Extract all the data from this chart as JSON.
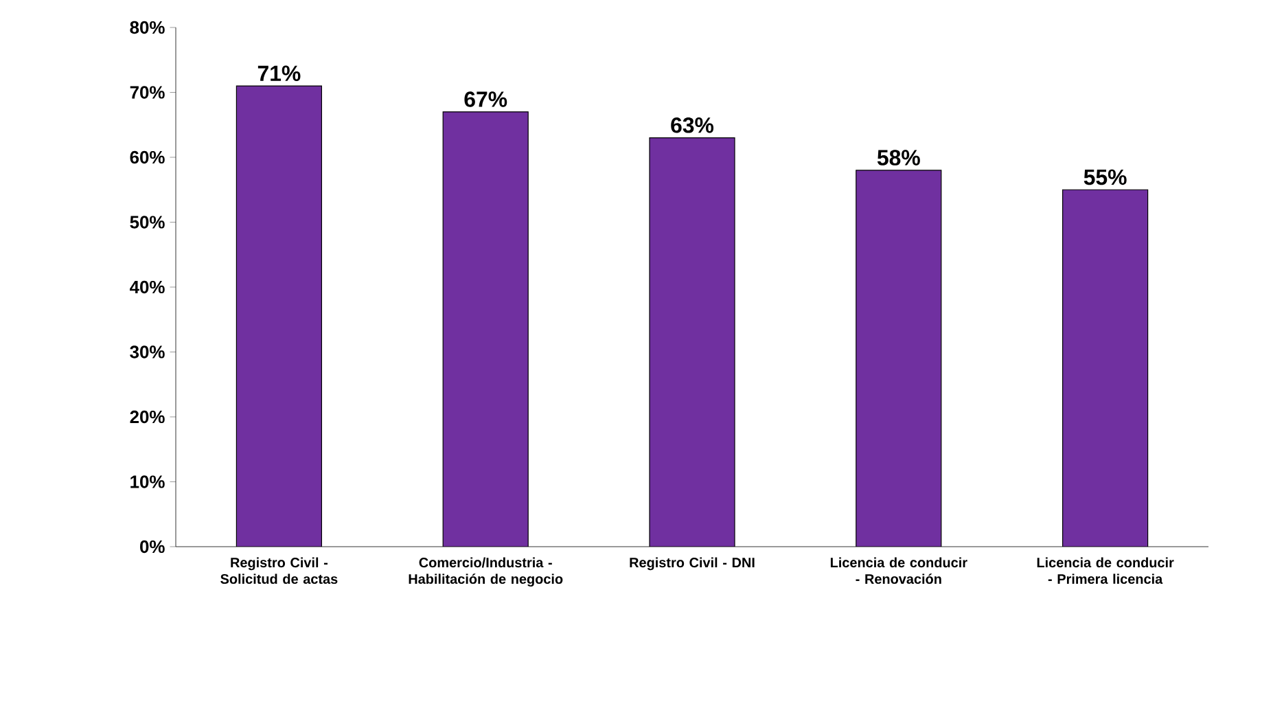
{
  "chart_data": {
    "type": "bar",
    "categories": [
      "Registro Civil - Solicitud de actas",
      "Comercio/Industria - Habilitación de negocio",
      "Registro Civil - DNI",
      "Licencia de conducir - Renovación",
      "Licencia de conducir - Primera licencia"
    ],
    "values": [
      71,
      67,
      63,
      58,
      55
    ],
    "value_labels": [
      "71%",
      "67%",
      "63%",
      "58%",
      "55%"
    ],
    "color": "#7030a0",
    "ylim": [
      0,
      80
    ],
    "yticks": [
      {
        "value": 0,
        "label": "0%"
      },
      {
        "value": 10,
        "label": "10%"
      },
      {
        "value": 20,
        "label": "20%"
      },
      {
        "value": 30,
        "label": "30%"
      },
      {
        "value": 40,
        "label": "40%"
      },
      {
        "value": 50,
        "label": "50%"
      },
      {
        "value": 60,
        "label": "60%"
      },
      {
        "value": 70,
        "label": "70%"
      },
      {
        "value": 80,
        "label": "80%"
      }
    ],
    "grid": false
  }
}
